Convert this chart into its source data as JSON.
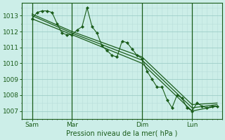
{
  "bg_color": "#cceee8",
  "grid_color_major": "#9ecec8",
  "grid_color_minor": "#b8ddd8",
  "line_color": "#1a5c1a",
  "xlabel": "Pression niveau de la mer( hPa )",
  "ylim": [
    1006.5,
    1013.8
  ],
  "yticks": [
    1007,
    1008,
    1009,
    1010,
    1011,
    1012,
    1013
  ],
  "xlim": [
    0,
    120
  ],
  "xtick_positions": [
    6,
    30,
    72,
    102
  ],
  "xtick_labels": [
    "Sam",
    "Mar",
    "Dim",
    "Lun"
  ],
  "vline_positions": [
    6,
    30,
    72,
    102
  ],
  "series1_x": [
    6,
    9,
    12,
    15,
    18,
    21,
    24,
    27,
    30,
    33,
    36,
    39,
    42,
    45,
    48,
    51,
    54,
    57,
    60,
    63,
    66,
    69,
    72,
    75,
    78,
    81,
    84,
    87,
    90,
    93,
    96,
    99,
    102,
    105,
    108,
    111,
    114,
    117
  ],
  "series1_y": [
    1012.8,
    1013.2,
    1013.3,
    1013.3,
    1013.2,
    1012.5,
    1011.9,
    1011.8,
    1011.8,
    1012.1,
    1012.3,
    1013.5,
    1012.3,
    1011.9,
    1011.1,
    1010.8,
    1010.5,
    1010.4,
    1011.4,
    1011.3,
    1010.9,
    1010.5,
    1010.3,
    1009.5,
    1009.0,
    1008.5,
    1008.5,
    1007.7,
    1007.2,
    1008.0,
    1007.8,
    1007.2,
    1007.0,
    1007.5,
    1007.3,
    1007.2,
    1007.3,
    1007.3
  ],
  "series2_x": [
    6,
    30,
    72,
    102,
    117
  ],
  "series2_y": [
    1012.8,
    1011.8,
    1010.0,
    1007.0,
    1007.3
  ],
  "series3_x": [
    6,
    30,
    72,
    102,
    117
  ],
  "series3_y": [
    1013.0,
    1011.9,
    1010.2,
    1007.2,
    1007.4
  ],
  "series4_x": [
    6,
    30,
    72,
    102,
    117
  ],
  "series4_y": [
    1013.1,
    1012.0,
    1010.4,
    1007.4,
    1007.5
  ]
}
